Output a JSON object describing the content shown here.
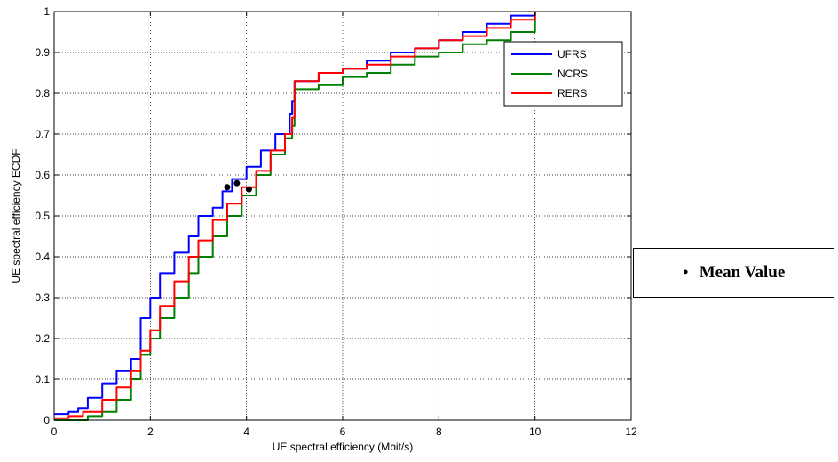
{
  "chart_data": {
    "type": "line",
    "xlabel": "UE spectral efficiency (Mbit/s)",
    "ylabel": "UE  spectral efficiency ECDF",
    "xlim": [
      0,
      12
    ],
    "ylim": [
      0,
      1
    ],
    "xticks": [
      0,
      2,
      4,
      6,
      8,
      10,
      12
    ],
    "yticks": [
      0,
      0.1,
      0.2,
      0.3,
      0.4,
      0.5,
      0.6,
      0.7,
      0.8,
      0.9,
      1
    ],
    "grid": true,
    "legend_position": "top-right",
    "series": [
      {
        "name": "UFRS",
        "color": "#0000ff",
        "x": [
          0,
          0.3,
          0.5,
          0.7,
          1.0,
          1.3,
          1.6,
          1.8,
          2.0,
          2.2,
          2.5,
          2.8,
          3.0,
          3.3,
          3.5,
          3.7,
          4.0,
          4.3,
          4.6,
          4.9,
          4.95,
          5.0,
          5.5,
          6.0,
          6.5,
          7.0,
          7.5,
          8.0,
          8.5,
          9.0,
          9.5,
          10.0
        ],
        "y": [
          0.015,
          0.02,
          0.03,
          0.055,
          0.09,
          0.12,
          0.15,
          0.25,
          0.3,
          0.36,
          0.41,
          0.45,
          0.5,
          0.52,
          0.56,
          0.59,
          0.62,
          0.66,
          0.7,
          0.75,
          0.78,
          0.83,
          0.85,
          0.86,
          0.88,
          0.9,
          0.91,
          0.93,
          0.95,
          0.97,
          0.99,
          1.0
        ]
      },
      {
        "name": "NCRS",
        "color": "#008000",
        "x": [
          0,
          0.5,
          0.7,
          1.0,
          1.3,
          1.6,
          1.8,
          2.0,
          2.2,
          2.5,
          2.8,
          3.0,
          3.3,
          3.6,
          3.9,
          4.2,
          4.5,
          4.8,
          4.95,
          5.0,
          5.5,
          6.0,
          6.5,
          7.0,
          7.5,
          8.0,
          8.5,
          9.0,
          9.5,
          10.0
        ],
        "y": [
          0.0,
          0.0,
          0.01,
          0.02,
          0.05,
          0.1,
          0.16,
          0.2,
          0.25,
          0.3,
          0.36,
          0.4,
          0.45,
          0.5,
          0.55,
          0.6,
          0.65,
          0.69,
          0.72,
          0.81,
          0.82,
          0.84,
          0.85,
          0.87,
          0.89,
          0.9,
          0.92,
          0.93,
          0.95,
          1.0
        ]
      },
      {
        "name": "RERS",
        "color": "#ff0000",
        "x": [
          0,
          0.3,
          0.6,
          1.0,
          1.3,
          1.6,
          1.8,
          2.0,
          2.2,
          2.5,
          2.8,
          3.0,
          3.3,
          3.6,
          3.9,
          4.2,
          4.5,
          4.8,
          4.95,
          5.0,
          5.5,
          6.0,
          6.5,
          7.0,
          7.5,
          8.0,
          8.5,
          9.0,
          9.5,
          10.0
        ],
        "y": [
          0.005,
          0.01,
          0.02,
          0.05,
          0.08,
          0.12,
          0.17,
          0.22,
          0.28,
          0.34,
          0.4,
          0.44,
          0.49,
          0.53,
          0.57,
          0.61,
          0.66,
          0.7,
          0.74,
          0.83,
          0.85,
          0.86,
          0.87,
          0.89,
          0.91,
          0.93,
          0.94,
          0.96,
          0.98,
          1.0
        ]
      }
    ],
    "mean_points": [
      {
        "series": "UFRS",
        "x": 3.6,
        "y": 0.57
      },
      {
        "series": "RERS",
        "x": 3.8,
        "y": 0.58
      },
      {
        "series": "NCRS",
        "x": 4.05,
        "y": 0.565
      }
    ]
  },
  "note": {
    "bullet": "•",
    "text": "Mean Value"
  }
}
